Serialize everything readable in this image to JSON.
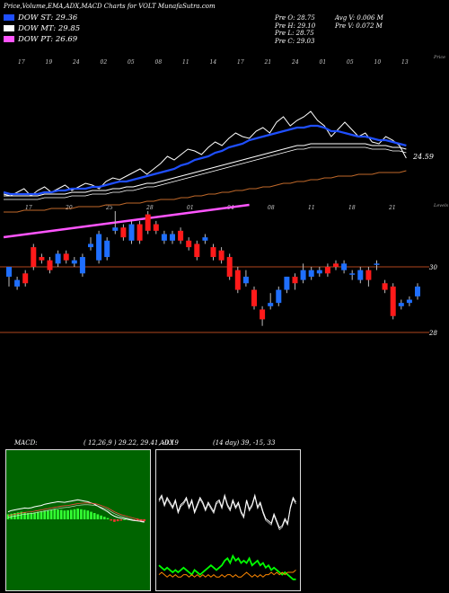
{
  "header": {
    "title": "Price,Volume,EMA,ADX,MACD Charts for VOLT MunafaSutra.com"
  },
  "legend": [
    {
      "label": "DOW ST: 29.36",
      "color": "#1f4fff"
    },
    {
      "label": "DOW MT: 29.85",
      "color": "#ffffff"
    },
    {
      "label": "DOW PT: 26.69",
      "color": "#ff55ff"
    }
  ],
  "quote": {
    "prev_open": "Pre   O: 28.75",
    "prev_high": "Pre   H: 29.10",
    "prev_low": "Pre   L: 28.75",
    "prev_close": "Pre   C: 29.03",
    "avg_vol": "Avg V: 0.006   M",
    "prev_vol": "Pre   V: 0.072   M"
  },
  "chart_data": [
    {
      "type": "line",
      "name": "price-ema",
      "date_labels_top": [
        "17",
        "19",
        "24",
        "02",
        "05",
        "08",
        "11",
        "14",
        "17",
        "21",
        "24",
        "01",
        "05",
        "10",
        "13"
      ],
      "date_labels_bottom": [
        "17",
        "20",
        "25",
        "28",
        "01",
        "04",
        "08",
        "11",
        "18",
        "21"
      ],
      "side_label_top": "Price",
      "side_label_bottom": "Levels",
      "last_price_label": "24.59",
      "series": [
        {
          "color": "#ffffff",
          "values": [
            22.6,
            22.5,
            22.7,
            22.9,
            22.5,
            22.8,
            23.0,
            22.7,
            22.9,
            23.1,
            22.8,
            23.0,
            23.2,
            23.1,
            22.9,
            23.3,
            23.5,
            23.4,
            23.6,
            23.8,
            24.0,
            23.7,
            24.0,
            24.3,
            24.7,
            24.5,
            24.8,
            25.1,
            25.0,
            24.8,
            25.2,
            25.5,
            25.3,
            25.7,
            26.0,
            25.8,
            25.7,
            26.1,
            26.3,
            26.0,
            26.6,
            26.9,
            26.4,
            26.7,
            26.9,
            27.2,
            26.7,
            26.4,
            25.8,
            26.2,
            26.6,
            26.2,
            25.8,
            26.0,
            25.5,
            25.4,
            25.8,
            25.6,
            25.3,
            24.6
          ]
        },
        {
          "color": "#1f4fff",
          "values": [
            22.7,
            22.6,
            22.6,
            22.6,
            22.6,
            22.6,
            22.7,
            22.7,
            22.8,
            22.8,
            22.9,
            22.9,
            22.9,
            23.0,
            23.0,
            23.1,
            23.2,
            23.3,
            23.3,
            23.4,
            23.5,
            23.6,
            23.7,
            23.8,
            23.9,
            24.0,
            24.2,
            24.3,
            24.5,
            24.6,
            24.7,
            24.9,
            25.0,
            25.2,
            25.3,
            25.4,
            25.6,
            25.7,
            25.8,
            25.9,
            26.0,
            26.1,
            26.2,
            26.3,
            26.3,
            26.4,
            26.4,
            26.3,
            26.1,
            26.1,
            26.0,
            25.9,
            25.8,
            25.8,
            25.7,
            25.6,
            25.6,
            25.5,
            25.4,
            25.3
          ]
        },
        {
          "color": "#ffffff",
          "values": [
            22.5,
            22.5,
            22.5,
            22.5,
            22.5,
            22.5,
            22.6,
            22.6,
            22.6,
            22.6,
            22.7,
            22.7,
            22.7,
            22.8,
            22.8,
            22.8,
            22.9,
            22.9,
            23.0,
            23.0,
            23.1,
            23.2,
            23.2,
            23.3,
            23.4,
            23.5,
            23.6,
            23.7,
            23.8,
            23.9,
            24.0,
            24.1,
            24.2,
            24.3,
            24.4,
            24.5,
            24.6,
            24.7,
            24.8,
            24.9,
            25.0,
            25.1,
            25.2,
            25.3,
            25.3,
            25.4,
            25.4,
            25.4,
            25.4,
            25.4,
            25.4,
            25.4,
            25.4,
            25.4,
            25.3,
            25.3,
            25.3,
            25.2,
            25.2,
            25.1
          ]
        },
        {
          "color": "#c0692a",
          "values": [
            21.6,
            21.6,
            21.6,
            21.7,
            21.7,
            21.7,
            21.7,
            21.8,
            21.8,
            21.8,
            21.8,
            21.9,
            21.9,
            21.9,
            21.9,
            22.0,
            22.0,
            22.0,
            22.1,
            22.1,
            22.1,
            22.2,
            22.2,
            22.3,
            22.3,
            22.3,
            22.4,
            22.4,
            22.5,
            22.5,
            22.6,
            22.6,
            22.7,
            22.7,
            22.8,
            22.8,
            22.9,
            22.9,
            23.0,
            23.0,
            23.1,
            23.2,
            23.2,
            23.3,
            23.3,
            23.4,
            23.4,
            23.5,
            23.5,
            23.6,
            23.6,
            23.6,
            23.7,
            23.7,
            23.7,
            23.8,
            23.8,
            23.8,
            23.8,
            23.9
          ]
        },
        {
          "color": "#ff55ff",
          "values": [
            20.2,
            20.25,
            20.3,
            20.35,
            20.4,
            20.45,
            20.5,
            20.55,
            20.6,
            20.65,
            20.7,
            20.75,
            20.8,
            20.85,
            20.9,
            20.95,
            21.0,
            21.05,
            21.1,
            21.15,
            21.2,
            21.25,
            21.3,
            21.35,
            21.4,
            21.45,
            21.5,
            21.55,
            21.6,
            21.65,
            21.7,
            21.75,
            21.8,
            21.85,
            21.9,
            21.95,
            22.0
          ]
        }
      ]
    },
    {
      "type": "bar",
      "name": "candles",
      "levels": [
        30,
        28
      ],
      "level_labels": [
        "30",
        "28"
      ],
      "open": [
        29.7,
        29.4,
        29.8,
        30.6,
        30.3,
        30.2,
        30.1,
        30.4,
        30.1,
        29.8,
        30.6,
        30.2,
        30.3,
        31.1,
        31.2,
        30.8,
        31.3,
        31.6,
        31.3,
        30.8,
        30.8,
        31.1,
        30.8,
        30.7,
        30.8,
        30.6,
        30.5,
        30.3,
        29.9,
        29.5,
        29.3,
        28.7,
        28.8,
        28.9,
        29.3,
        29.7,
        29.6,
        29.7,
        29.8,
        30.0,
        30.1,
        29.9,
        29.8,
        29.6,
        29.9,
        30.1,
        29.5,
        29.4,
        28.8,
        28.9,
        29.1
      ],
      "close": [
        30.0,
        29.6,
        29.5,
        30.0,
        30.2,
        29.9,
        30.4,
        30.2,
        30.2,
        30.3,
        30.7,
        31.0,
        30.8,
        31.2,
        30.9,
        31.3,
        30.8,
        31.1,
        31.1,
        31.0,
        31.0,
        30.8,
        30.6,
        30.3,
        30.9,
        30.3,
        30.2,
        29.7,
        29.3,
        29.7,
        28.8,
        28.4,
        28.9,
        29.3,
        29.7,
        29.5,
        29.9,
        29.9,
        29.9,
        29.8,
        30.0,
        30.1,
        29.8,
        29.9,
        29.6,
        30.1,
        29.3,
        28.5,
        28.9,
        29.0,
        29.4
      ],
      "high": [
        30.0,
        29.7,
        29.9,
        30.7,
        30.4,
        30.3,
        30.5,
        30.5,
        30.3,
        30.4,
        30.9,
        31.1,
        30.9,
        31.7,
        31.3,
        31.4,
        31.4,
        31.7,
        31.4,
        31.1,
        31.1,
        31.2,
        30.9,
        30.8,
        31.0,
        30.7,
        30.6,
        30.4,
        30.0,
        29.9,
        29.4,
        28.8,
        29.2,
        29.4,
        29.7,
        29.8,
        30.1,
        30.0,
        30.0,
        30.1,
        30.2,
        30.2,
        29.9,
        30.0,
        30.0,
        30.2,
        29.6,
        29.5,
        29.0,
        29.1,
        29.5
      ],
      "low": [
        29.4,
        29.3,
        29.4,
        29.9,
        30.1,
        29.8,
        30.0,
        30.1,
        30.0,
        29.7,
        30.5,
        30.1,
        30.2,
        31.0,
        30.8,
        30.7,
        30.7,
        31.0,
        31.0,
        30.7,
        30.7,
        30.7,
        30.5,
        30.2,
        30.7,
        30.2,
        30.1,
        29.6,
        29.2,
        29.4,
        28.7,
        28.2,
        28.7,
        28.8,
        29.2,
        29.3,
        29.5,
        29.6,
        29.7,
        29.7,
        29.9,
        29.8,
        29.6,
        29.5,
        29.4,
        29.9,
        29.2,
        28.4,
        28.7,
        28.8,
        29.0
      ]
    },
    {
      "type": "bar",
      "name": "macd",
      "label": "MACD:",
      "params": "( 12,26,9 ) 29.22,  29.41,  -0.19",
      "hist": [
        0.4,
        0.45,
        0.5,
        0.55,
        0.6,
        0.55,
        0.5,
        0.52,
        0.55,
        0.6,
        0.65,
        0.7,
        0.72,
        0.75,
        0.8,
        0.78,
        0.75,
        0.7,
        0.72,
        0.75,
        0.8,
        0.85,
        0.8,
        0.75,
        0.7,
        0.6,
        0.5,
        0.4,
        0.3,
        0.2,
        0.1,
        -0.1,
        -0.2,
        -0.15,
        -0.1,
        0.0,
        0.05,
        0.02,
        -0.05,
        -0.1,
        -0.12,
        -0.15
      ],
      "macd": [
        0.6,
        0.7,
        0.75,
        0.8,
        0.85,
        0.9,
        0.88,
        0.92,
        1.0,
        1.05,
        1.1,
        1.2,
        1.25,
        1.3,
        1.35,
        1.4,
        1.38,
        1.35,
        1.4,
        1.45,
        1.5,
        1.55,
        1.5,
        1.45,
        1.4,
        1.3,
        1.2,
        1.05,
        0.9,
        0.75,
        0.6,
        0.4,
        0.25,
        0.15,
        0.1,
        0.05,
        0.0,
        -0.05,
        -0.1,
        -0.12,
        -0.15,
        -0.19
      ],
      "signal": [
        0.3,
        0.35,
        0.4,
        0.45,
        0.5,
        0.55,
        0.58,
        0.6,
        0.65,
        0.7,
        0.75,
        0.8,
        0.85,
        0.9,
        0.95,
        1.0,
        1.05,
        1.08,
        1.1,
        1.15,
        1.2,
        1.25,
        1.28,
        1.3,
        1.3,
        1.28,
        1.25,
        1.2,
        1.1,
        1.0,
        0.9,
        0.75,
        0.6,
        0.48,
        0.38,
        0.3,
        0.22,
        0.15,
        0.08,
        0.02,
        -0.05,
        -0.1
      ]
    },
    {
      "type": "line",
      "name": "adx",
      "label": "ADX",
      "params": "(14 day) 39,  -15,  33",
      "series": [
        {
          "color": "#ffffff",
          "values": [
            36,
            38,
            34,
            37,
            35,
            33,
            36,
            31,
            34,
            35,
            37,
            33,
            36,
            31,
            34,
            37,
            35,
            32,
            35,
            33,
            31,
            35,
            36,
            33,
            38,
            34,
            32,
            36,
            33,
            35,
            31,
            29,
            36,
            32,
            34,
            38,
            33,
            35,
            31,
            28,
            27,
            26,
            30,
            27,
            24,
            25,
            28,
            26,
            33,
            37,
            35
          ]
        },
        {
          "color": "#00ff00",
          "values": [
            8,
            7,
            6,
            7,
            6,
            5,
            6,
            5,
            6,
            7,
            6,
            5,
            4,
            6,
            5,
            4,
            5,
            6,
            7,
            8,
            7,
            6,
            7,
            8,
            10,
            11,
            9,
            12,
            10,
            11,
            9,
            10,
            9,
            11,
            8,
            9,
            10,
            8,
            9,
            7,
            8,
            6,
            7,
            6,
            5,
            4,
            5,
            4,
            3,
            2,
            2
          ]
        },
        {
          "color": "#ff8800",
          "values": [
            4,
            5,
            4,
            3,
            4,
            3,
            4,
            3,
            3,
            4,
            4,
            3,
            4,
            3,
            4,
            3,
            4,
            3,
            4,
            3,
            4,
            3,
            3,
            4,
            3,
            4,
            4,
            3,
            4,
            3,
            3,
            4,
            5,
            4,
            3,
            4,
            3,
            4,
            3,
            4,
            4,
            5,
            4,
            5,
            4,
            5,
            4,
            5,
            5,
            5,
            6
          ]
        }
      ]
    }
  ]
}
